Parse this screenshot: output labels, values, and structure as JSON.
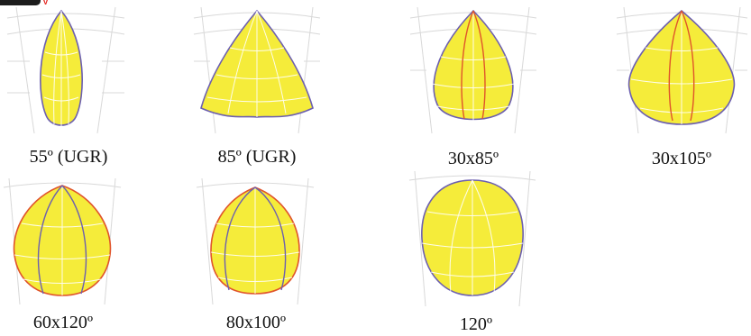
{
  "colors": {
    "fill": "#f5ec3a",
    "grid": "#ffffff",
    "background_grid": "#d6d6d6",
    "outline_blue": "#6c5fb0",
    "outline_red": "#e0542b"
  },
  "header": {
    "corner_mark": "y"
  },
  "distributions": [
    {
      "label": "55º (UGR)",
      "shape": "narrow-spindle",
      "extra_curves": 0
    },
    {
      "label": "85º (UGR)",
      "shape": "wide-spindle",
      "extra_curves": 0
    },
    {
      "label": "30x85º",
      "shape": "teardrop",
      "extra_curves": 2
    },
    {
      "label": "30x105º",
      "shape": "teardrop-wide",
      "extra_curves": 2
    },
    {
      "label": "60x120º",
      "shape": "teardrop-round",
      "extra_curves": 2
    },
    {
      "label": "80x100º",
      "shape": "teardrop-round",
      "extra_curves": 2
    },
    {
      "label": "120º",
      "shape": "round",
      "extra_curves": 0
    }
  ]
}
